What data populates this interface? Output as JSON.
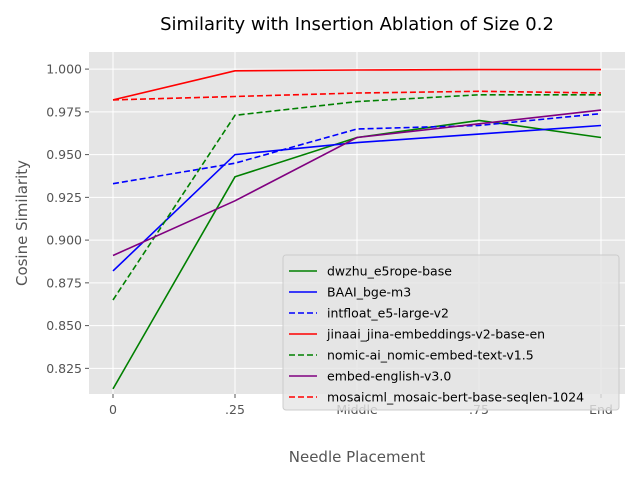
{
  "chart_data": {
    "type": "line",
    "title": "Similarity with Insertion Ablation of Size 0.2",
    "xlabel": "Needle Placement",
    "ylabel": "Cosine Similarity",
    "categories": [
      "0",
      ".25",
      "Middle",
      ".75",
      "End"
    ],
    "ylim": [
      0.81,
      1.01
    ],
    "yticks": [
      "0.825",
      "0.850",
      "0.875",
      "0.900",
      "0.925",
      "0.950",
      "0.975",
      "1.000"
    ],
    "grid": true,
    "legend_position": "lower-right",
    "series": [
      {
        "name": "dwzhu_e5rope-base",
        "color": "#008000",
        "dash": "solid",
        "values": [
          0.813,
          0.937,
          0.96,
          0.97,
          0.96
        ]
      },
      {
        "name": "BAAI_bge-m3",
        "color": "#0000ff",
        "dash": "solid",
        "values": [
          0.882,
          0.95,
          0.957,
          0.962,
          0.967
        ]
      },
      {
        "name": "intfloat_e5-large-v2",
        "color": "#0000ff",
        "dash": "dashed",
        "values": [
          0.933,
          0.945,
          0.965,
          0.967,
          0.974
        ]
      },
      {
        "name": "jinaai_jina-embeddings-v2-base-en",
        "color": "#ff0000",
        "dash": "solid",
        "values": [
          0.982,
          0.999,
          0.9995,
          0.9997,
          0.9997
        ]
      },
      {
        "name": "nomic-ai_nomic-embed-text-v1.5",
        "color": "#008000",
        "dash": "dashed",
        "values": [
          0.865,
          0.973,
          0.981,
          0.985,
          0.985
        ]
      },
      {
        "name": "embed-english-v3.0",
        "color": "#800080",
        "dash": "solid",
        "values": [
          0.891,
          0.923,
          0.96,
          0.968,
          0.976
        ]
      },
      {
        "name": "mosaicml_mosaic-bert-base-seqlen-1024",
        "color": "#ff0000",
        "dash": "dashed",
        "values": [
          0.982,
          0.984,
          0.986,
          0.987,
          0.986
        ]
      }
    ]
  }
}
